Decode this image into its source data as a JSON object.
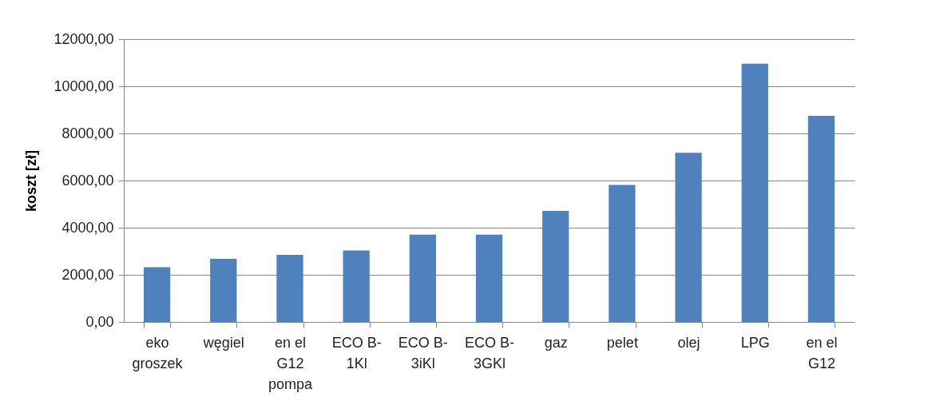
{
  "chart_data": {
    "type": "bar",
    "ylabel": "koszt [zł]",
    "categories": [
      "eko groszek",
      "węgiel",
      "en el G12 pompa",
      "ECO B-1Kl",
      "ECO B-3iKl",
      "ECO B-3GKl",
      "gaz",
      "pelet",
      "olej",
      "LPG",
      "en el G12"
    ],
    "values": [
      2320,
      2680,
      2850,
      3030,
      3700,
      3700,
      4710,
      5810,
      7180,
      10960,
      8750
    ],
    "color": "#4f81bd",
    "ylim": [
      0,
      12000
    ],
    "yticks": [
      {
        "value": 0,
        "label": "0,00"
      },
      {
        "value": 2000,
        "label": "2000,00"
      },
      {
        "value": 4000,
        "label": "4000,00"
      },
      {
        "value": 6000,
        "label": "6000,00"
      },
      {
        "value": 8000,
        "label": "8000,00"
      },
      {
        "value": 10000,
        "label": "10000,00"
      },
      {
        "value": 12000,
        "label": "12000,00"
      }
    ],
    "grid": "y"
  }
}
